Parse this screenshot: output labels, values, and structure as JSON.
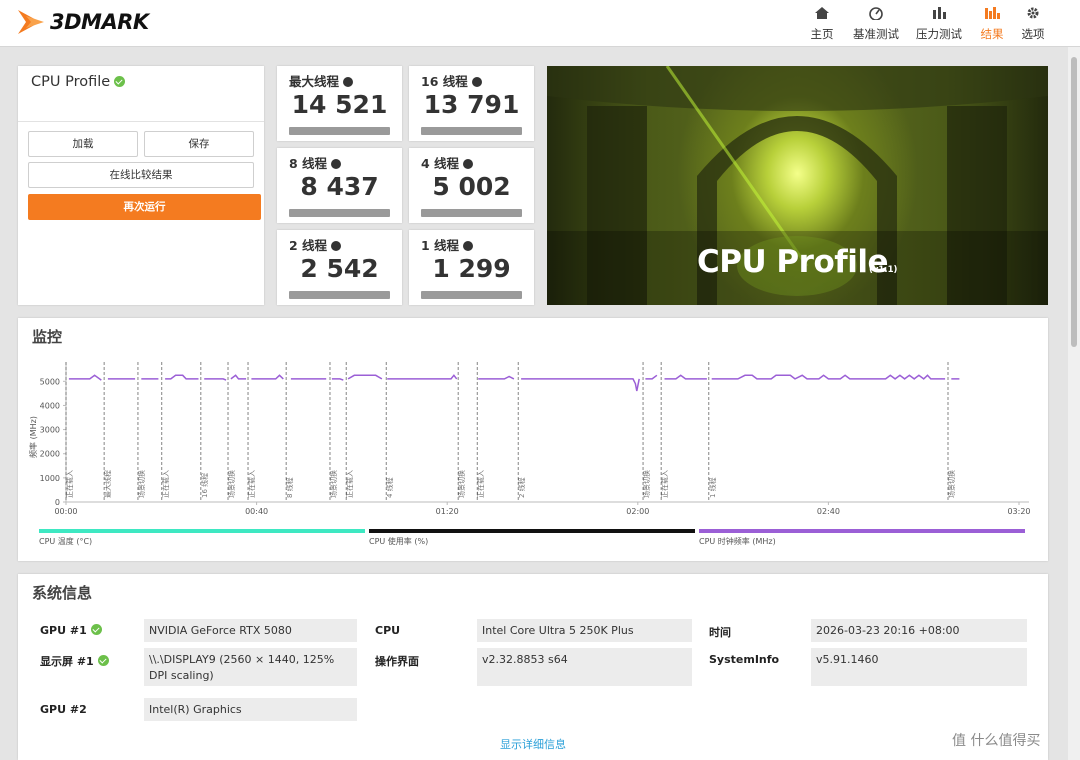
{
  "header": {
    "logo": "3DMARK",
    "nav": [
      "主页",
      "基准测试",
      "压力测试",
      "结果",
      "选项"
    ]
  },
  "profile_card": {
    "title": "CPU Profile",
    "buttons": [
      "加载",
      "保存",
      "在线比较结果",
      "再次运行"
    ]
  },
  "scores": [
    {
      "label": "最大线程",
      "value": "14 521"
    },
    {
      "label": "16 线程",
      "value": "13 791"
    },
    {
      "label": "8 线程",
      "value": "8 437"
    },
    {
      "label": "4 线程",
      "value": "5 002"
    },
    {
      "label": "2 线程",
      "value": "2 542"
    },
    {
      "label": "1 线程",
      "value": "1 299"
    }
  ],
  "banner": {
    "title": "CPU Profile",
    "version": "(v1.1)"
  },
  "monitor": {
    "title": "监控"
  },
  "chart_data": {
    "type": "line",
    "y_label": "频率 (MHz)",
    "xlim": [
      0,
      200
    ],
    "ylim": [
      0,
      5800
    ],
    "xticks": [
      {
        "value": 0,
        "label": "00:00"
      },
      {
        "value": 40,
        "label": "00:40"
      },
      {
        "value": 80,
        "label": "01:20"
      },
      {
        "value": 120,
        "label": "02:00"
      },
      {
        "value": 160,
        "label": "02:40"
      },
      {
        "value": 200,
        "label": "03:20"
      }
    ],
    "yticks": [
      0,
      1000,
      2000,
      3000,
      4000,
      5000
    ],
    "grid": false,
    "markers": [
      {
        "x": 0,
        "label": "正在载入"
      },
      {
        "x": 8,
        "label": "最大线程"
      },
      {
        "x": 15.1,
        "label": "场景切换"
      },
      {
        "x": 20.1,
        "label": "正在载入"
      },
      {
        "x": 28.3,
        "label": "16 线程"
      },
      {
        "x": 34,
        "label": "场景切换"
      },
      {
        "x": 38.2,
        "label": "正在载入"
      },
      {
        "x": 46.2,
        "label": "8 线程"
      },
      {
        "x": 55.4,
        "label": "场景切换"
      },
      {
        "x": 58.8,
        "label": "正在载入"
      },
      {
        "x": 67.2,
        "label": "4 线程"
      },
      {
        "x": 82.3,
        "label": "场景切换"
      },
      {
        "x": 86.3,
        "label": "正在载入"
      },
      {
        "x": 94.9,
        "label": "2 线程"
      },
      {
        "x": 121.1,
        "label": "场景切换"
      },
      {
        "x": 124.9,
        "label": "正在载入"
      },
      {
        "x": 134.9,
        "label": "1 线程"
      },
      {
        "x": 185.1,
        "label": "场景切换"
      }
    ],
    "x": [
      0.6,
      5,
      6,
      7.4,
      7.8,
      8.8,
      14.5,
      14.8,
      15.8,
      19.4,
      19.7,
      20.8,
      22,
      23,
      24.5,
      25.2,
      27.8,
      28,
      29,
      33,
      33.6,
      33.9,
      34.6,
      35.6,
      36.2,
      37.8,
      38,
      38.9,
      44,
      44.8,
      45.6,
      46,
      47.2,
      54.6,
      55,
      55.8,
      57.5,
      58.2,
      58.6,
      59.2,
      60.5,
      65,
      66.3,
      66.8,
      67.4,
      80.8,
      81.4,
      82,
      82.2,
      86.5,
      92,
      93,
      94,
      94.6,
      95.5,
      119,
      119.5,
      119.8,
      120.3,
      120.8,
      121.6,
      123,
      124,
      124.6,
      125.6,
      128,
      129,
      130,
      134.5,
      134.8,
      135.5,
      141,
      142.5,
      144,
      145,
      148,
      149,
      152,
      153,
      154.5,
      155.5,
      158,
      159,
      160,
      162.5,
      163.5,
      164.5,
      172,
      173,
      174,
      175,
      176,
      177,
      178,
      179,
      180,
      180.8,
      181.5,
      184.5,
      184.8,
      185.8,
      187.5
    ],
    "series": [
      {
        "name": "CPU 时钟频率 (MHz)",
        "color": "#9b5fd6",
        "values": [
          5100,
          5100,
          5250,
          5050,
          null,
          5100,
          5100,
          null,
          5100,
          5100,
          null,
          5100,
          5100,
          5250,
          5250,
          5100,
          5100,
          null,
          5100,
          5100,
          5050,
          null,
          5100,
          5250,
          5100,
          5100,
          null,
          5100,
          5100,
          5250,
          5100,
          null,
          5100,
          5100,
          null,
          5100,
          5100,
          5050,
          null,
          5100,
          5250,
          5250,
          5100,
          null,
          5100,
          5100,
          5250,
          5100,
          null,
          5100,
          5100,
          5200,
          5100,
          null,
          5100,
          5100,
          4900,
          4600,
          5100,
          null,
          5100,
          5100,
          5250,
          null,
          5100,
          5100,
          5250,
          5100,
          5100,
          null,
          5100,
          5100,
          5250,
          5250,
          5100,
          5100,
          5250,
          5250,
          5100,
          5250,
          5100,
          5100,
          5250,
          5100,
          5100,
          5250,
          5100,
          5100,
          5250,
          5100,
          5250,
          5100,
          5250,
          5100,
          5250,
          5100,
          5250,
          5100,
          5100,
          null,
          5100,
          5100
        ]
      }
    ],
    "legend": [
      {
        "name": "CPU 温度 (°C)",
        "color": "#3ee8c2"
      },
      {
        "name": "CPU 使用率 (%)",
        "color": "#111111"
      }
    ]
  },
  "system_info": {
    "title": "系统信息",
    "columns": [
      [
        {
          "label": "GPU #1",
          "value": "NVIDIA GeForce RTX 5080"
        },
        {
          "label": "显示屏 #1",
          "value": "\\\\.\\DISPLAY9 (2560 × 1440, 125% DPI scaling)"
        },
        {
          "label": "GPU #2",
          "value": "Intel(R) Graphics"
        }
      ],
      [
        {
          "label": "CPU",
          "value": "Intel Core Ultra 5 250K Plus"
        },
        {
          "label": "操作界面",
          "value": "v2.32.8853 s64"
        }
      ],
      [
        {
          "label": "时间",
          "value": "2026-03-23 20:16 +08:00"
        },
        {
          "label": "SystemInfo",
          "value": "v5.91.1460"
        }
      ]
    ],
    "more": "显示详细信息"
  },
  "watermark": "值 什么值得买"
}
